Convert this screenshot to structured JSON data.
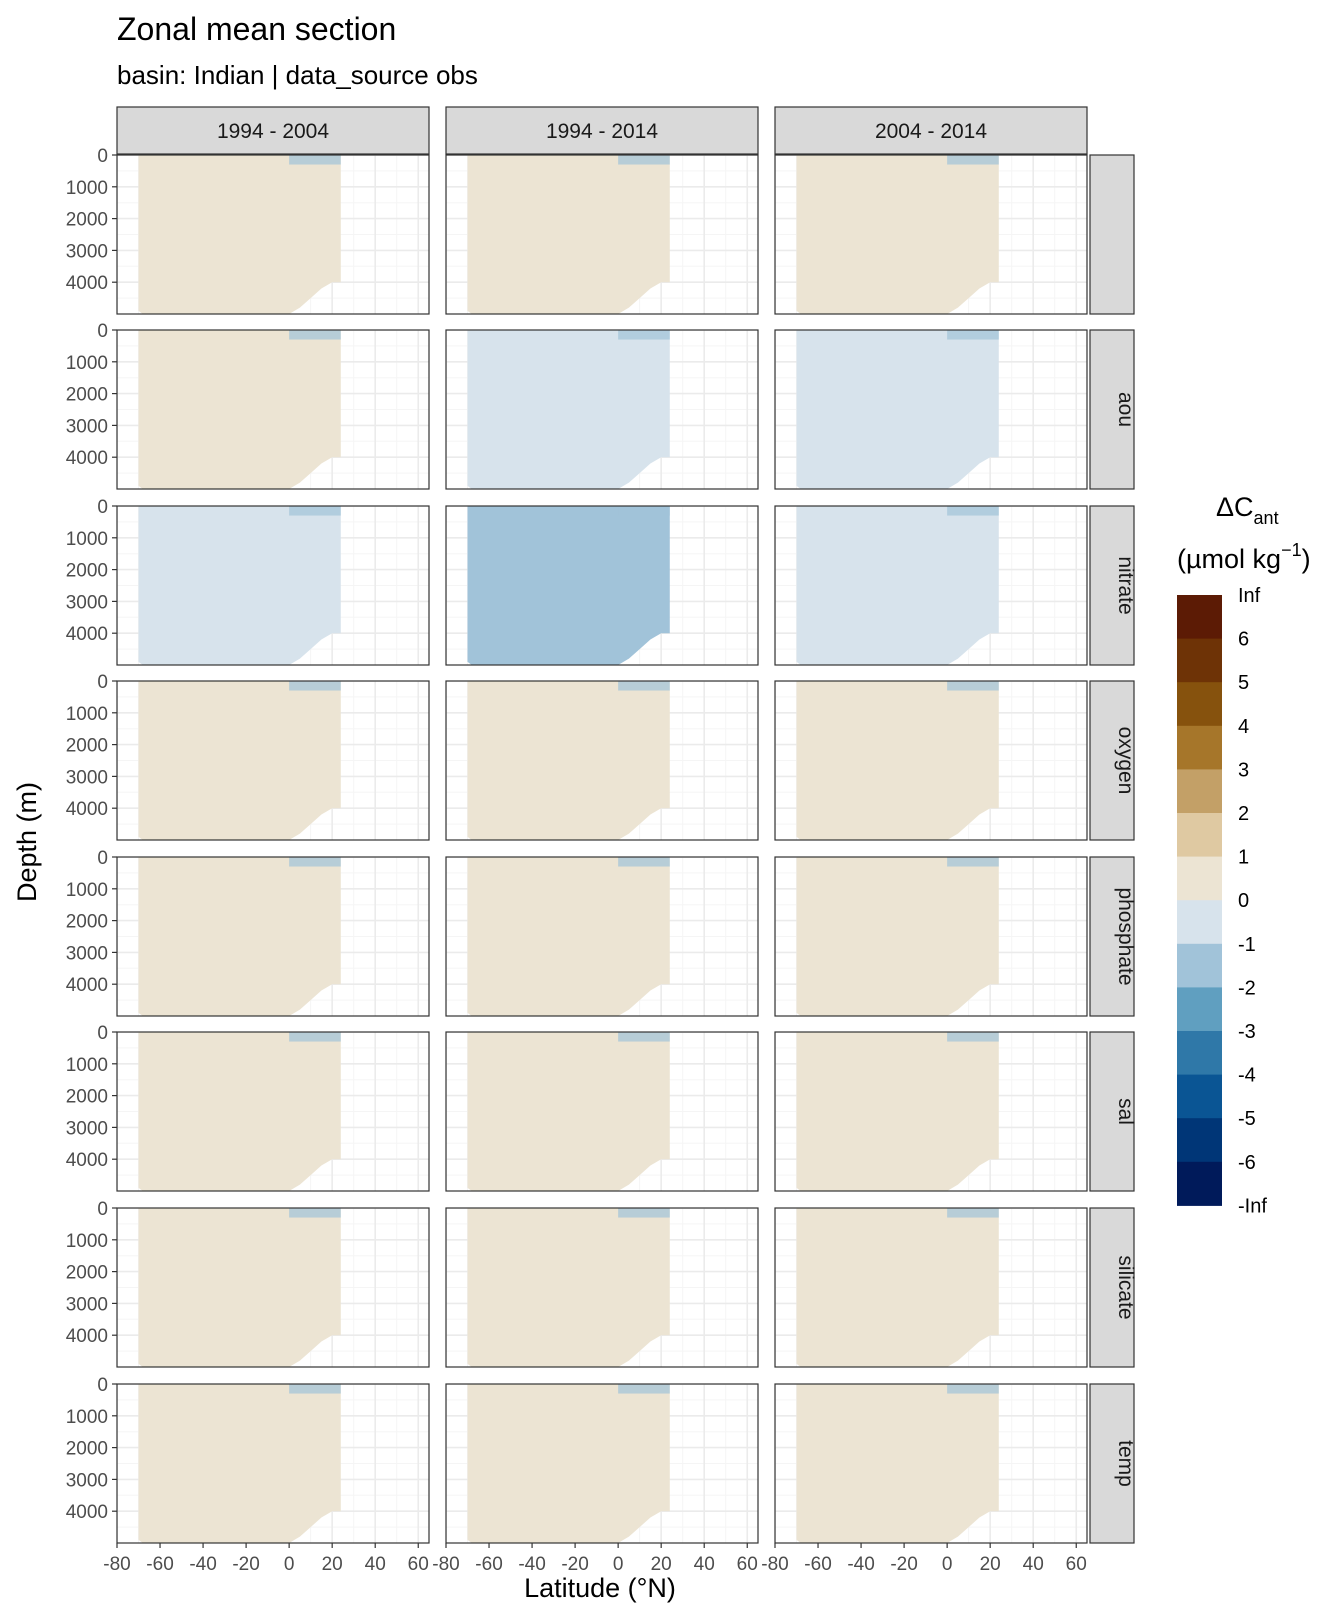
{
  "chart_data": {
    "type": "heatmap",
    "title": "Zonal mean section",
    "subtitle": "basin: Indian | data_source obs",
    "xlabel": "Latitude (°N)",
    "ylabel": "Depth (m)",
    "x_ticks": [
      "-80",
      "-60",
      "-40",
      "-20",
      "0",
      "20",
      "40",
      "60"
    ],
    "y_ticks": [
      "0",
      "1000",
      "2000",
      "3000",
      "4000"
    ],
    "xlim": [
      -80,
      65
    ],
    "ylim": [
      5000,
      0
    ],
    "grid": true,
    "column_strips": [
      "1994 - 2004",
      "1994 - 2014",
      "2004 - 2014"
    ],
    "row_strips": [
      "",
      "aou",
      "nitrate",
      "oxygen",
      "phosphate",
      "sal",
      "silicate",
      "temp"
    ],
    "legend": {
      "title_main": "ΔC",
      "title_sub": "ant",
      "title_unit_pre": "(µmol kg",
      "title_unit_sup": "−1",
      "title_unit_post": ")",
      "position": "right",
      "labels": [
        "Inf",
        "6",
        "5",
        "4",
        "3",
        "2",
        "1",
        "0",
        "-1",
        "-2",
        "-3",
        "-4",
        "-5",
        "-6",
        "-Inf"
      ],
      "colors": [
        "#5c1b05",
        "#6e3306",
        "#86520d",
        "#a6762a",
        "#c3a067",
        "#dfc9a2",
        "#ece4d3",
        "#d7e3ec",
        "#a1c3d9",
        "#609fc0",
        "#2f78a8",
        "#0a5594",
        "#003677",
        "#001a5a"
      ]
    },
    "ocean_lat_range": [
      -70,
      24
    ],
    "panel_colors": [
      [
        "#ece4d3",
        "#ece4d3",
        "#ece4d3"
      ],
      [
        "#ece4d3",
        "#d7e3ec",
        "#d7e3ec"
      ],
      [
        "#d7e3ec",
        "#a1c3d9",
        "#d7e3ec"
      ],
      [
        "#ece4d3",
        "#ece4d3",
        "#ece4d3"
      ],
      [
        "#ece4d3",
        "#ece4d3",
        "#ece4d3"
      ],
      [
        "#ece4d3",
        "#ece4d3",
        "#ece4d3"
      ],
      [
        "#ece4d3",
        "#ece4d3",
        "#ece4d3"
      ],
      [
        "#ece4d3",
        "#ece4d3",
        "#ece4d3"
      ]
    ]
  }
}
